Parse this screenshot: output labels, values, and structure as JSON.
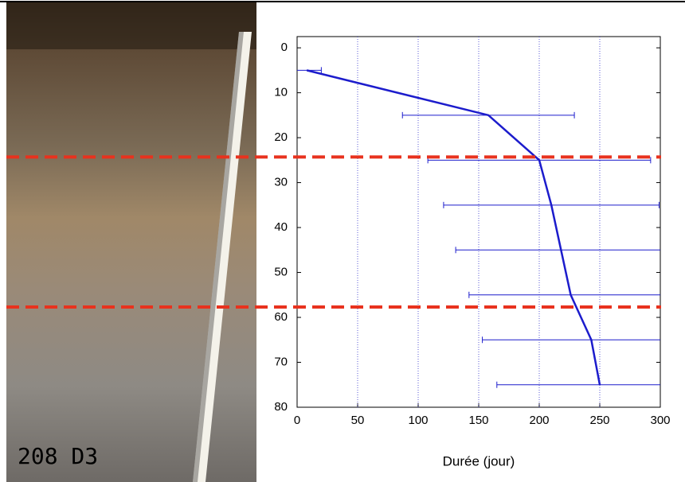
{
  "chart_data": {
    "type": "line",
    "x_label": "Durée (jour)",
    "photo_label": "208 D3",
    "series": [
      {
        "color": "#1c1ccc",
        "x": [
          8,
          158,
          200,
          210,
          218,
          226,
          243,
          250
        ],
        "y": [
          5,
          15,
          25,
          35,
          45,
          55,
          65,
          75
        ],
        "xerr": [
          12,
          71,
          92,
          89,
          87,
          84,
          90,
          85
        ]
      }
    ],
    "xlim": [
      0,
      300
    ],
    "xticks": [
      0,
      50,
      100,
      150,
      200,
      250,
      300
    ],
    "ylim": [
      -2.5,
      80
    ],
    "yticks": [
      0,
      10,
      20,
      30,
      40,
      50,
      60,
      70,
      80
    ],
    "y_inverted": true,
    "grid": true,
    "hlines": {
      "color": "#e8321e",
      "values": [
        24.3,
        57.7
      ]
    }
  }
}
